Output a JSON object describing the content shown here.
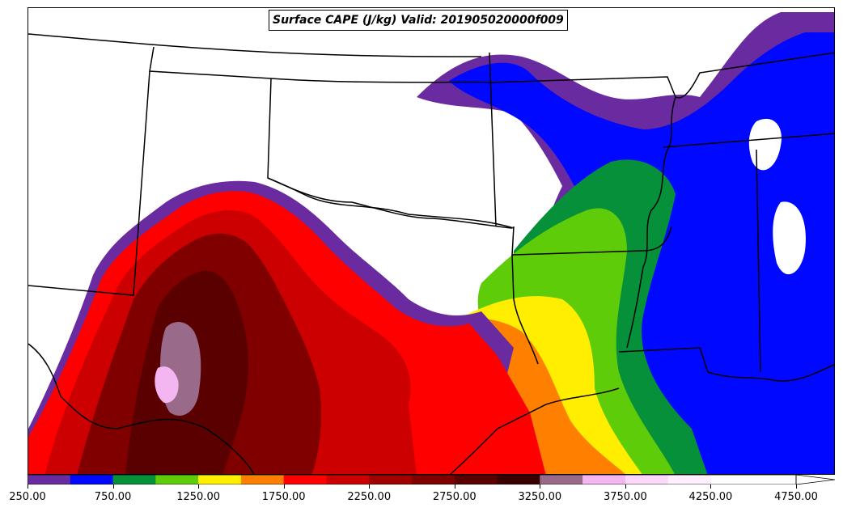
{
  "title": "Surface CAPE (J/kg) Valid: 201905020000f009",
  "colorbar": {
    "levels": [
      250,
      500,
      750,
      1000,
      1250,
      1500,
      1750,
      2000,
      2250,
      2500,
      2750,
      3000,
      3250,
      3500,
      3750,
      4000,
      4250,
      4500,
      4750
    ],
    "colors": [
      "#6a2aa0",
      "#0008ff",
      "#07903a",
      "#5fcc0a",
      "#ffee00",
      "#ff7f00",
      "#ff0000",
      "#cc0000",
      "#a00000",
      "#800000",
      "#5a0000",
      "#3a0000",
      "#9a6a8a",
      "#f4b6f0",
      "#fcd8f8",
      "#ffeefe",
      "#ffffff",
      "#ffffff"
    ],
    "tick_labels": [
      "250.00",
      "750.00",
      "1250.00",
      "1750.00",
      "2250.00",
      "2750.00",
      "3250.00",
      "3750.00",
      "4250.00",
      "4750.00"
    ]
  },
  "colors": {
    "frame": "#000000",
    "background": "#ffffff",
    "border_lines": "#000000"
  }
}
